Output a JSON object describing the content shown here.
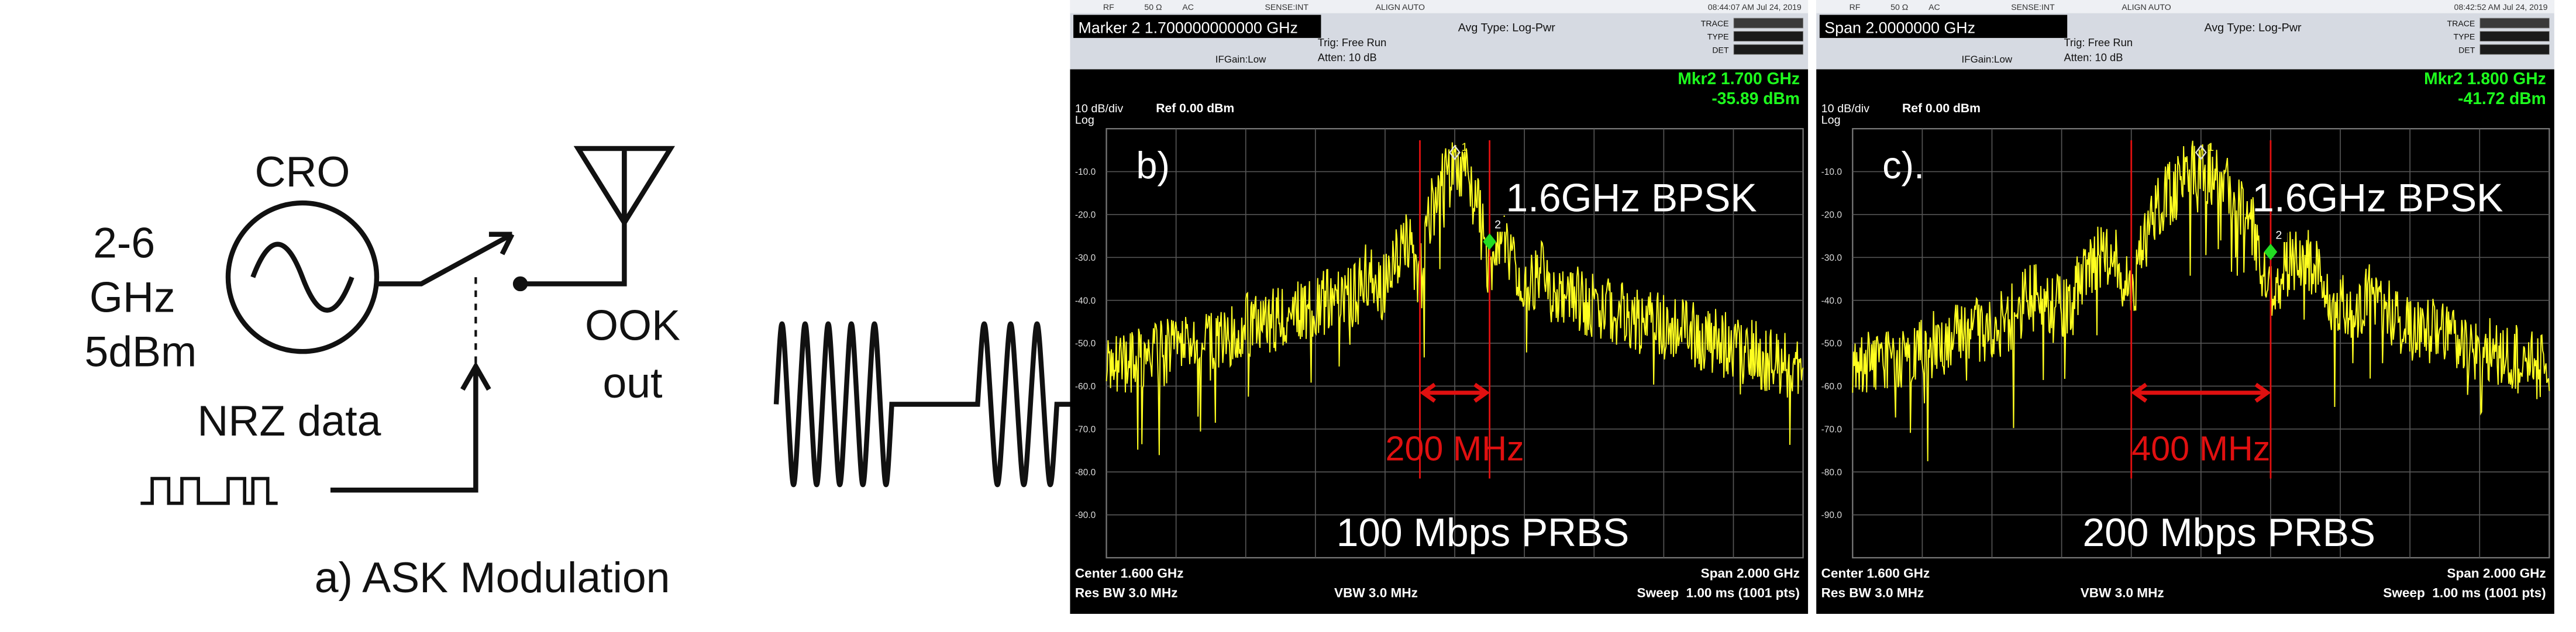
{
  "diagram": {
    "source_label": "CRO",
    "source_specs": [
      "2-6",
      "GHz",
      "5dBm"
    ],
    "data_label": "NRZ data",
    "output_label": [
      "OOK",
      "out"
    ],
    "caption": "a) ASK Modulation"
  },
  "panels": [
    {
      "header_marker": "Marker 2 1.700000000000 GHz",
      "status": [
        "RF",
        "50 Ω",
        "AC",
        "SENSE:INT",
        "ALIGN AUTO"
      ],
      "timestamp": "08:44:07 AM Jul 24, 2019",
      "trig": "Trig: Free Run",
      "atten": "Atten: 10 dB",
      "ifgain": "IFGain:Low",
      "avg_type": "Avg Type: Log-Pwr",
      "trace_labels": [
        "TRACE",
        "TYPE",
        "DET"
      ],
      "marker_readout": [
        "Mkr2 1.700 GHz",
        "-35.89 dBm"
      ],
      "scale": "10 dB/div",
      "scale_type": "Log",
      "ref": "Ref 0.00 dBm",
      "y_labels": [
        "-10.0",
        "-20.0",
        "-30.0",
        "-40.0",
        "-50.0",
        "-60.0",
        "-70.0",
        "-80.0",
        "-90.0"
      ],
      "markers": [
        "1",
        "2"
      ],
      "label": "b)",
      "signal": "1.6GHz BPSK",
      "bandwidth": "200 MHz",
      "data_rate": "100 Mbps PRBS",
      "center": "Center 1.600 GHz",
      "rbw": "Res BW 3.0 MHz",
      "vbw": "VBW 3.0 MHz",
      "span": "Span 2.000 GHz",
      "sweep": "Sweep  1.00 ms (1001 pts)"
    },
    {
      "header_marker": "Span 2.0000000 GHz",
      "status": [
        "RF",
        "50 Ω",
        "AC",
        "SENSE:INT",
        "ALIGN AUTO"
      ],
      "timestamp": "08:42:52 AM Jul 24, 2019",
      "trig": "Trig: Free Run",
      "atten": "Atten: 10 dB",
      "ifgain": "IFGain:Low",
      "avg_type": "Avg Type: Log-Pwr",
      "trace_labels": [
        "TRACE",
        "TYPE",
        "DET"
      ],
      "marker_readout": [
        "Mkr2 1.800 GHz",
        "-41.72 dBm"
      ],
      "scale": "10 dB/div",
      "scale_type": "Log",
      "ref": "Ref 0.00 dBm",
      "y_labels": [
        "-10.0",
        "-20.0",
        "-30.0",
        "-40.0",
        "-50.0",
        "-60.0",
        "-70.0",
        "-80.0",
        "-90.0"
      ],
      "markers": [
        "1",
        "2"
      ],
      "label": "c).",
      "signal": "1.6GHz BPSK",
      "bandwidth": "400 MHz",
      "data_rate": "200 Mbps PRBS",
      "center": "Center 1.600 GHz",
      "rbw": "Res BW 3.0 MHz",
      "vbw": "VBW 3.0 MHz",
      "span": "Span 2.000 GHz",
      "sweep": "Sweep  1.00 ms (1001 pts)"
    }
  ]
}
